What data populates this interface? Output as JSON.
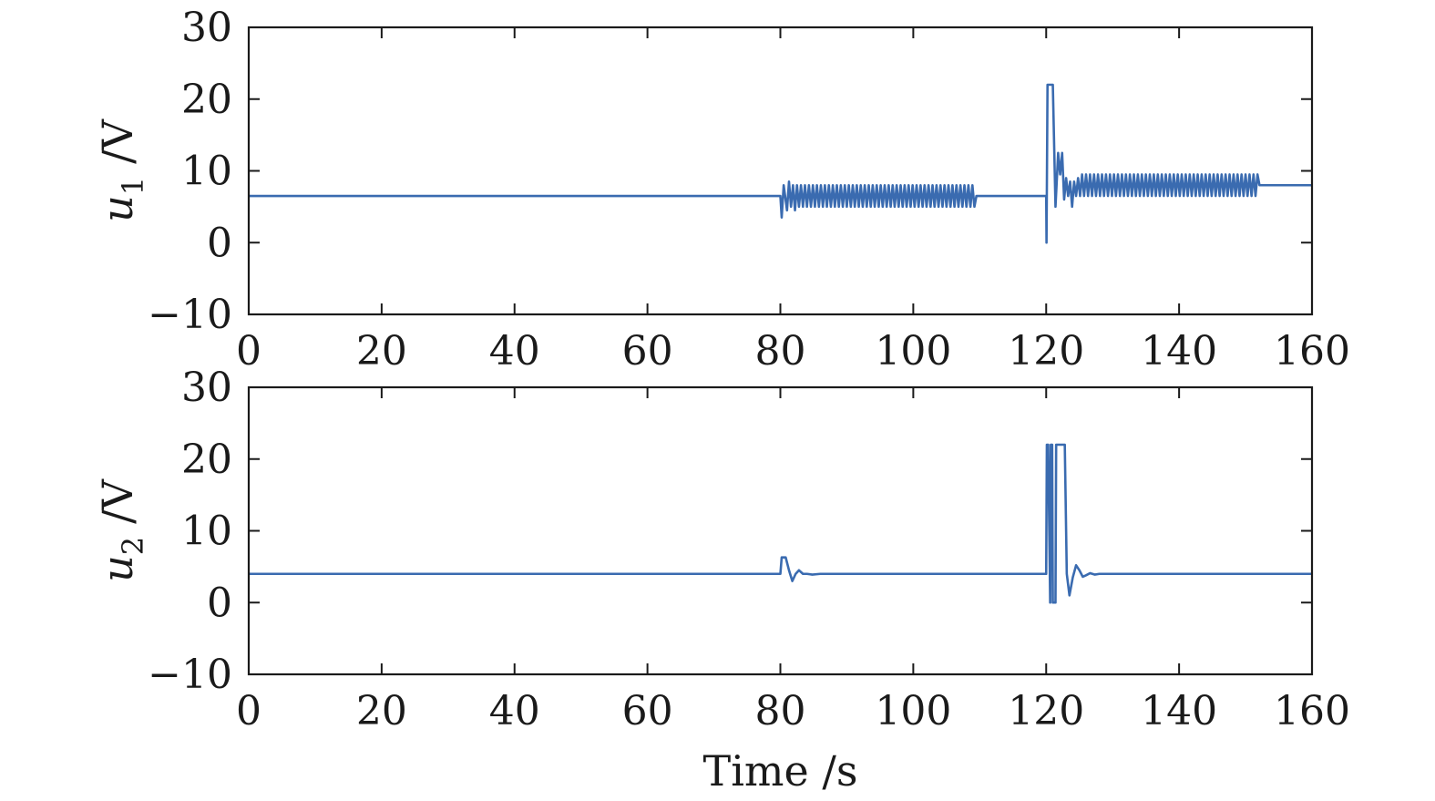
{
  "chart_data": [
    {
      "type": "line",
      "ylabel_var": "u",
      "ylabel_sub": "1",
      "ylabel_unit": "/V",
      "xlabel": "",
      "xlim": [
        0,
        160
      ],
      "ylim": [
        -10,
        30
      ],
      "xticks": [
        0,
        20,
        40,
        60,
        80,
        100,
        120,
        140,
        160
      ],
      "yticks": [
        -10,
        0,
        10,
        20,
        30
      ],
      "xtick_labels": [
        "0",
        "20",
        "40",
        "60",
        "80",
        "100",
        "120",
        "140",
        "160"
      ],
      "ytick_labels": [
        "−10",
        "0",
        "10",
        "20",
        "30"
      ],
      "grid": false,
      "color": "#3a6bb0",
      "series": [
        {
          "x": [
            0,
            80,
            80.2,
            80.5,
            81.0,
            81.3,
            81.6,
            81.9,
            82.2,
            82.5,
            82.8,
            83.1,
            83.4,
            83.7,
            84.0,
            84.3,
            84.6,
            84.9,
            85.2,
            85.5,
            85.8,
            86.1,
            86.4,
            86.7,
            87.0,
            87.3,
            87.6,
            87.9,
            88.2,
            88.5,
            88.8,
            89.1,
            89.4,
            89.7,
            90.0,
            90.3,
            90.6,
            90.9,
            91.2,
            91.5,
            91.8,
            92.1,
            92.4,
            92.7,
            93.0,
            93.3,
            93.6,
            93.9,
            94.2,
            94.5,
            94.8,
            95.1,
            95.4,
            95.7,
            96.0,
            96.3,
            96.6,
            96.9,
            97.2,
            97.5,
            97.8,
            98.1,
            98.4,
            98.7,
            99.0,
            99.3,
            99.6,
            99.9,
            100.2,
            100.5,
            100.8,
            101.1,
            101.4,
            101.7,
            102.0,
            102.3,
            102.6,
            102.9,
            103.2,
            103.5,
            103.8,
            104.1,
            104.4,
            104.7,
            105.0,
            105.3,
            105.6,
            105.9,
            106.2,
            106.5,
            106.8,
            107.1,
            107.4,
            107.7,
            108.0,
            108.3,
            108.6,
            108.9,
            109.2,
            109.5,
            120,
            120.05,
            120.2,
            120.5,
            121.0,
            121.4,
            121.8,
            122.1,
            122.4,
            122.7,
            123.0,
            123.3,
            123.6,
            123.9,
            124.2,
            124.5,
            124.8,
            125.1,
            125.4,
            125.7,
            126.0,
            126.3,
            126.6,
            126.9,
            127.2,
            127.5,
            127.8,
            128.1,
            128.4,
            128.7,
            129.0,
            129.3,
            129.6,
            129.9,
            130.2,
            130.5,
            130.8,
            131.1,
            131.4,
            131.7,
            132.0,
            132.3,
            132.6,
            132.9,
            133.2,
            133.5,
            133.8,
            134.1,
            134.4,
            134.7,
            135.0,
            135.3,
            135.6,
            135.9,
            136.2,
            136.5,
            136.8,
            137.1,
            137.4,
            137.7,
            138.0,
            138.3,
            138.6,
            138.9,
            139.2,
            139.5,
            139.8,
            140.1,
            140.4,
            140.7,
            141.0,
            141.3,
            141.6,
            141.9,
            142.2,
            142.5,
            142.8,
            143.1,
            143.4,
            143.7,
            144.0,
            144.3,
            144.6,
            144.9,
            145.2,
            145.5,
            145.8,
            146.1,
            146.4,
            146.7,
            147.0,
            147.3,
            147.6,
            147.9,
            148.2,
            148.5,
            148.8,
            149.1,
            149.4,
            149.7,
            150.0,
            150.3,
            150.6,
            150.9,
            151.2,
            151.5,
            151.8,
            152.1,
            160
          ],
          "y": [
            6.5,
            6.5,
            3.5,
            8.0,
            4.5,
            8.5,
            5.0,
            8.0,
            4.5,
            8.0,
            5.0,
            8.0,
            5.0,
            8.0,
            5.0,
            8.0,
            5.0,
            8.0,
            5.0,
            8.0,
            5.0,
            8.0,
            5.0,
            8.0,
            5.0,
            8.0,
            5.0,
            8.0,
            5.0,
            8.0,
            5.0,
            8.0,
            5.0,
            8.0,
            5.0,
            8.0,
            5.0,
            8.0,
            5.0,
            8.0,
            5.0,
            8.0,
            5.0,
            8.0,
            5.0,
            8.0,
            5.0,
            8.0,
            5.0,
            8.0,
            5.0,
            8.0,
            5.0,
            8.0,
            5.0,
            8.0,
            5.0,
            8.0,
            5.0,
            8.0,
            5.0,
            8.0,
            5.0,
            8.0,
            5.0,
            8.0,
            5.0,
            8.0,
            5.0,
            8.0,
            5.0,
            8.0,
            5.0,
            8.0,
            5.0,
            8.0,
            5.0,
            8.0,
            5.0,
            8.0,
            5.0,
            8.0,
            5.0,
            8.0,
            5.0,
            8.0,
            5.0,
            8.0,
            5.0,
            8.0,
            5.0,
            8.0,
            5.0,
            8.0,
            5.0,
            8.0,
            5.0,
            8.0,
            5.0,
            6.5,
            6.5,
            0,
            22,
            22,
            22,
            5.0,
            12.5,
            9.5,
            12.5,
            6.0,
            9.0,
            6.5,
            8.5,
            5.0,
            8.5,
            6.5,
            9.0,
            6.5,
            9.5,
            6.5,
            9.5,
            6.5,
            9.5,
            6.5,
            9.5,
            6.5,
            9.5,
            6.5,
            9.5,
            6.5,
            9.5,
            6.5,
            9.5,
            6.5,
            9.5,
            6.5,
            9.5,
            6.5,
            9.5,
            6.5,
            9.5,
            6.5,
            9.5,
            6.5,
            9.5,
            6.5,
            9.5,
            6.5,
            9.5,
            6.5,
            9.5,
            6.5,
            9.5,
            6.5,
            9.5,
            6.5,
            9.5,
            6.5,
            9.5,
            6.5,
            9.5,
            6.5,
            9.5,
            6.5,
            9.5,
            6.5,
            9.5,
            6.5,
            9.5,
            6.5,
            9.5,
            6.5,
            9.5,
            6.5,
            9.5,
            6.5,
            9.5,
            6.5,
            9.5,
            6.5,
            9.5,
            6.5,
            9.5,
            6.5,
            9.5,
            6.5,
            9.5,
            6.5,
            9.5,
            6.5,
            9.5,
            6.5,
            9.5,
            6.5,
            9.5,
            6.5,
            9.5,
            6.5,
            9.5,
            6.5,
            9.5,
            6.5,
            9.5,
            6.5,
            9.5,
            6.5,
            9.5,
            8.0,
            8.0
          ]
        }
      ]
    },
    {
      "type": "line",
      "ylabel_var": "u",
      "ylabel_sub": "2",
      "ylabel_unit": "/V",
      "xlabel": "Time /s",
      "xlim": [
        0,
        160
      ],
      "ylim": [
        -10,
        30
      ],
      "xticks": [
        0,
        20,
        40,
        60,
        80,
        100,
        120,
        140,
        160
      ],
      "yticks": [
        -10,
        0,
        10,
        20,
        30
      ],
      "xtick_labels": [
        "0",
        "20",
        "40",
        "60",
        "80",
        "100",
        "120",
        "140",
        "160"
      ],
      "ytick_labels": [
        "−10",
        "0",
        "10",
        "20",
        "30"
      ],
      "grid": false,
      "color": "#3a6bb0",
      "series": [
        {
          "x": [
            0,
            80,
            80.2,
            80.8,
            81.3,
            81.8,
            82.3,
            82.8,
            83.4,
            84.0,
            84.8,
            86,
            120,
            120.1,
            120.3,
            120.6,
            120.7,
            120.9,
            121.0,
            121.4,
            121.5,
            121.6,
            122.8,
            123.1,
            123.5,
            124.0,
            124.5,
            125.0,
            125.5,
            126.0,
            126.6,
            127.3,
            128.0,
            160
          ],
          "y": [
            4,
            4,
            6.3,
            6.3,
            4.5,
            3.0,
            4.0,
            4.5,
            4.0,
            4.0,
            3.9,
            4,
            4,
            22,
            22,
            0,
            22,
            22,
            0,
            0,
            22,
            22,
            22,
            4.0,
            1.0,
            3.5,
            5.2,
            4.5,
            3.6,
            3.8,
            4.1,
            3.9,
            4,
            4
          ]
        }
      ]
    }
  ]
}
